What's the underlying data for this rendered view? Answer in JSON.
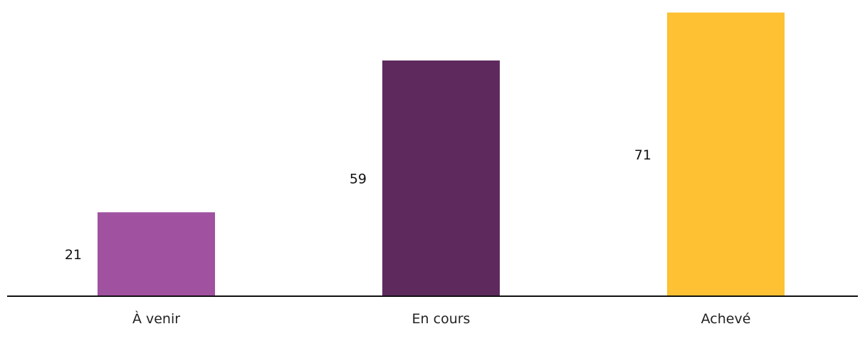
{
  "chart_data": {
    "type": "bar",
    "categories": [
      "À venir",
      "En cours",
      "Achevé"
    ],
    "values": [
      21,
      59,
      71
    ],
    "colors": [
      "#a052a0",
      "#5e2a5e",
      "#fdc133"
    ],
    "title": "",
    "xlabel": "",
    "ylabel": "",
    "ylim": [
      0,
      72
    ],
    "grid": false,
    "legend": "none",
    "axis_color": "#111111"
  }
}
